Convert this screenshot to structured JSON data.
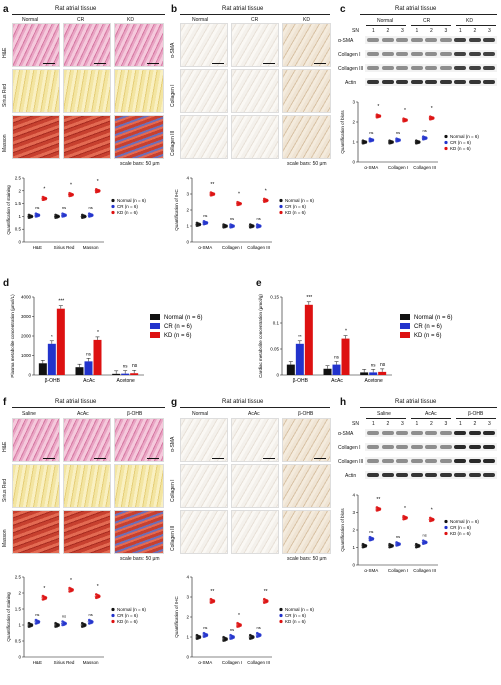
{
  "panels": {
    "a": {
      "letter": "a",
      "header": "Rat atrial tissue",
      "cols": [
        "Normal",
        "CR",
        "KD"
      ],
      "rows": [
        "H&E",
        "Sirius Red",
        "Masson"
      ],
      "scale": "scale bars: 50 μm",
      "ylabel": "Quantification of staining",
      "cats": [
        "H&E",
        "Sirius Red",
        "Masson"
      ]
    },
    "b": {
      "letter": "b",
      "header": "Rat atrial tissue",
      "cols": [
        "Normal",
        "CR",
        "KD"
      ],
      "rows": [
        "α-SMA",
        "Collagen I",
        "Collagen III"
      ],
      "scale": "scale bars: 50 μm",
      "ylabel": "Quantification of IHC",
      "cats": [
        "α-SMA",
        "Collagen I",
        "Collagen III"
      ]
    },
    "c": {
      "letter": "c",
      "header": "Rat atrial tissue",
      "groups": [
        "Normal",
        "CR",
        "KD"
      ],
      "sn_label": "SN",
      "lanes": [
        "1",
        "2",
        "3",
        "1",
        "2",
        "3",
        "1",
        "2",
        "3"
      ],
      "rows": [
        "α-SMA",
        "Collagen I",
        "Collagen III",
        "Actin"
      ],
      "ylabel": "Quantification of blots",
      "cats": [
        "α-SMA",
        "Collagen I",
        "Collagen III"
      ]
    },
    "d": {
      "letter": "d",
      "ylabel": "Plasma metabolite concentration (μmol/L)",
      "cats": [
        "β-OHB",
        "AcAc",
        "Acetone"
      ]
    },
    "e": {
      "letter": "e",
      "ylabel": "Cardiac metabolite concentration (μmol/g)",
      "cats": [
        "β-OHB",
        "AcAc",
        "Acetone"
      ]
    },
    "f": {
      "letter": "f",
      "header": "Rat atrial tissue",
      "cols": [
        "Saline",
        "AcAc",
        "β-OHB"
      ],
      "rows": [
        "H&E",
        "Sirius Red",
        "Masson"
      ],
      "scale": "scale bars: 50 μm",
      "ylabel": "Quantification of staining",
      "cats": [
        "H&E",
        "Sirius Red",
        "Masson"
      ]
    },
    "g": {
      "letter": "g",
      "header": "Rat atrial tissue",
      "cols": [
        "Normal",
        "AcAc",
        "β-OHB"
      ],
      "rows": [
        "α-SMA",
        "Collagen I",
        "Collagen III"
      ],
      "scale": "scale bars: 50 μm",
      "ylabel": "Quantification of IHC",
      "cats": [
        "α-SMA",
        "Collagen I",
        "Collagen III"
      ]
    },
    "h": {
      "letter": "h",
      "header": "Rat atrial tissue",
      "groups": [
        "Saline",
        "AcAc",
        "β-OHB"
      ],
      "sn_label": "SN",
      "lanes": [
        "1",
        "2",
        "3",
        "1",
        "2",
        "3",
        "1",
        "2",
        "3"
      ],
      "rows": [
        "α-SMA",
        "Collagen I",
        "Collagen III",
        "Actin"
      ],
      "ylabel": "Quantification of blots",
      "cats": [
        "α-SMA",
        "Collagen I",
        "Collagen III"
      ]
    }
  },
  "legend": {
    "normal": "Normal (n = 6)",
    "cr": "CR (n = 6)",
    "kd": "KD (n = 6)"
  },
  "colors": {
    "normal": "#111111",
    "cr": "#2233cc",
    "kd": "#dd1111"
  },
  "chart_data": [
    {
      "id": "a",
      "type": "scatter",
      "categories": [
        "H&E",
        "Sirius Red",
        "Masson"
      ],
      "ylim": [
        0,
        2.5
      ],
      "yticks": [
        0,
        0.5,
        1.0,
        1.5,
        2.0,
        2.5
      ],
      "ylabel": "Quantification of staining",
      "series": [
        {
          "name": "Normal (n = 6)",
          "values": [
            1.0,
            1.0,
            1.0
          ]
        },
        {
          "name": "CR (n = 6)",
          "values": [
            1.05,
            1.05,
            1.05
          ]
        },
        {
          "name": "KD (n = 6)",
          "values": [
            1.7,
            1.85,
            2.0
          ]
        }
      ],
      "annotations": [
        [
          "ns",
          "*"
        ],
        [
          "ns",
          "*"
        ],
        [
          "ns",
          "*"
        ]
      ]
    },
    {
      "id": "b",
      "type": "scatter",
      "categories": [
        "α-SMA",
        "Collagen I",
        "Collagen III"
      ],
      "ylim": [
        0,
        4
      ],
      "yticks": [
        0,
        1,
        2,
        3,
        4
      ],
      "ylabel": "Quantification of IHC",
      "series": [
        {
          "name": "Normal (n = 6)",
          "values": [
            1.1,
            1.0,
            1.0
          ]
        },
        {
          "name": "CR (n = 6)",
          "values": [
            1.2,
            1.0,
            1.0
          ]
        },
        {
          "name": "KD (n = 6)",
          "values": [
            3.0,
            2.4,
            2.6
          ]
        }
      ],
      "annotations": [
        [
          "ns",
          "**"
        ],
        [
          "ns",
          "*"
        ],
        [
          "ns",
          "*"
        ]
      ]
    },
    {
      "id": "c",
      "type": "scatter",
      "categories": [
        "α-SMA",
        "Collagen I",
        "Collagen III"
      ],
      "ylim": [
        0,
        3
      ],
      "yticks": [
        0,
        1,
        2,
        3
      ],
      "ylabel": "Quantification of blots",
      "series": [
        {
          "name": "Normal (n = 6)",
          "values": [
            1.0,
            1.0,
            1.0
          ]
        },
        {
          "name": "CR (n = 6)",
          "values": [
            1.1,
            1.1,
            1.2
          ]
        },
        {
          "name": "KD (n = 6)",
          "values": [
            2.3,
            2.1,
            2.2
          ]
        }
      ],
      "annotations": [
        [
          "ns",
          "*"
        ],
        [
          "ns",
          "*"
        ],
        [
          "ns",
          "*"
        ]
      ]
    },
    {
      "id": "d",
      "type": "bar",
      "categories": [
        "β-OHB",
        "AcAc",
        "Acetone"
      ],
      "ylim": [
        0,
        4000
      ],
      "yticks": [
        0,
        1000,
        2000,
        3000,
        4000
      ],
      "ylabel": "Plasma metabolite concentration (μmol/L)",
      "series": [
        {
          "name": "Normal (n = 6)",
          "values": [
            600,
            400,
            60
          ]
        },
        {
          "name": "CR (n = 6)",
          "values": [
            1600,
            700,
            70
          ]
        },
        {
          "name": "KD (n = 6)",
          "values": [
            3400,
            1800,
            90
          ]
        }
      ],
      "annotations": [
        [
          "*",
          "***"
        ],
        [
          "ns",
          "*"
        ],
        [
          "ns",
          "ns"
        ]
      ]
    },
    {
      "id": "e",
      "type": "bar",
      "categories": [
        "β-OHB",
        "AcAc",
        "Acetone"
      ],
      "ylim": [
        0,
        0.15
      ],
      "yticks": [
        0,
        0.05,
        0.1,
        0.15
      ],
      "ylabel": "Cardiac metabolite concentration (μmol/g)",
      "series": [
        {
          "name": "Normal (n = 6)",
          "values": [
            0.02,
            0.012,
            0.005
          ]
        },
        {
          "name": "CR (n = 6)",
          "values": [
            0.06,
            0.02,
            0.005
          ]
        },
        {
          "name": "KD (n = 6)",
          "values": [
            0.135,
            0.07,
            0.006
          ]
        }
      ],
      "annotations": [
        [
          "**",
          "***"
        ],
        [
          "ns",
          "*"
        ],
        [
          "ns",
          "ns"
        ]
      ]
    },
    {
      "id": "f",
      "type": "scatter",
      "categories": [
        "H&E",
        "Sirius Red",
        "Masson"
      ],
      "ylim": [
        0,
        2.5
      ],
      "yticks": [
        0,
        0.5,
        1.0,
        1.5,
        2.0,
        2.5
      ],
      "ylabel": "Quantification of staining",
      "series": [
        {
          "name": "Normal (n = 6)",
          "values": [
            1.0,
            1.0,
            1.0
          ]
        },
        {
          "name": "CR (n = 6)",
          "values": [
            1.1,
            1.05,
            1.1
          ]
        },
        {
          "name": "KD (n = 6)",
          "values": [
            1.85,
            2.1,
            1.9
          ]
        }
      ],
      "annotations": [
        [
          "ns",
          "*"
        ],
        [
          "ns",
          "*"
        ],
        [
          "ns",
          "*"
        ]
      ]
    },
    {
      "id": "g",
      "type": "scatter",
      "categories": [
        "α-SMA",
        "Collagen I",
        "Collagen III"
      ],
      "ylim": [
        0,
        4
      ],
      "yticks": [
        0,
        1,
        2,
        3,
        4
      ],
      "ylabel": "Quantification of IHC",
      "series": [
        {
          "name": "Normal (n = 6)",
          "values": [
            1.0,
            0.9,
            1.0
          ]
        },
        {
          "name": "CR (n = 6)",
          "values": [
            1.1,
            1.0,
            1.1
          ]
        },
        {
          "name": "KD (n = 6)",
          "values": [
            2.8,
            1.6,
            2.8
          ]
        }
      ],
      "annotations": [
        [
          "ns",
          "**"
        ],
        [
          "ns",
          "*"
        ],
        [
          "ns",
          "**"
        ]
      ]
    },
    {
      "id": "h",
      "type": "scatter",
      "categories": [
        "α-SMA",
        "Collagen I",
        "Collagen III"
      ],
      "ylim": [
        0,
        4
      ],
      "yticks": [
        0,
        1,
        2,
        3,
        4
      ],
      "ylabel": "Quantification of blots",
      "series": [
        {
          "name": "Normal (n = 6)",
          "values": [
            1.1,
            1.1,
            1.1
          ]
        },
        {
          "name": "CR (n = 6)",
          "values": [
            1.5,
            1.2,
            1.3
          ]
        },
        {
          "name": "KD (n = 6)",
          "values": [
            3.2,
            2.7,
            2.6
          ]
        }
      ],
      "annotations": [
        [
          "ns",
          "**"
        ],
        [
          "ns",
          "*"
        ],
        [
          "ns",
          "*"
        ]
      ]
    }
  ]
}
